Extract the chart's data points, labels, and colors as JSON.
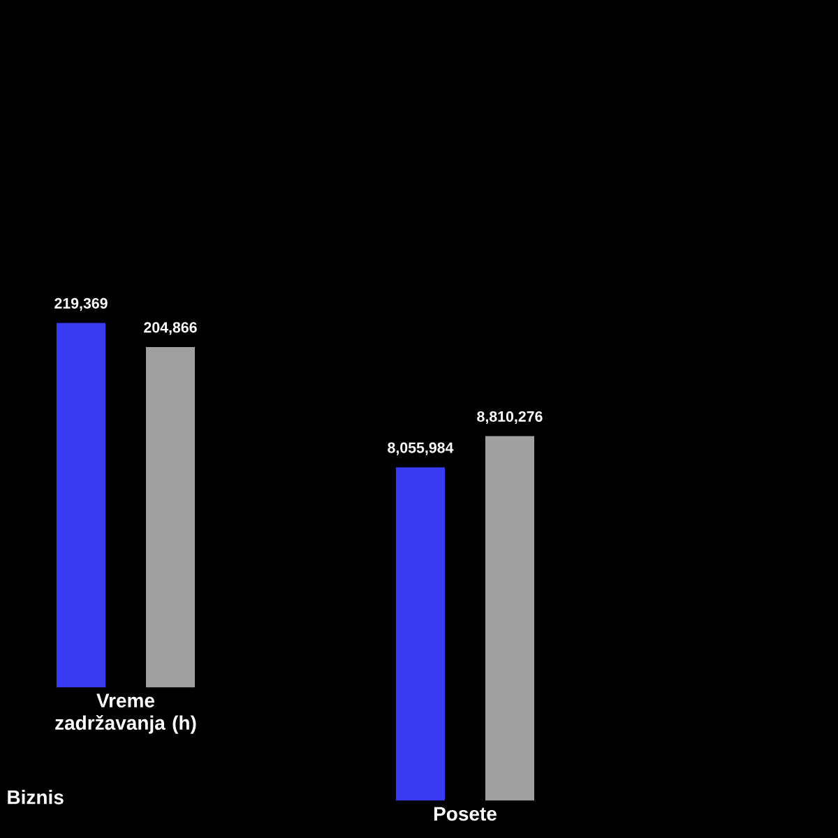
{
  "chart_data": [
    {
      "type": "bar",
      "categories": [
        "Vreme zadržavanja (h)"
      ],
      "tick_labels": "x",
      "annotations": [
        "Biznis"
      ],
      "series": [
        {
          "color": "#3a3af2",
          "values": [
            219369
          ],
          "value_labels": [
            "219,369"
          ]
        },
        {
          "color": "#a0a0a0",
          "values": [
            204866
          ],
          "value_labels": [
            "204,866"
          ]
        }
      ]
    },
    {
      "type": "bar",
      "categories": [
        "Posete"
      ],
      "tick_labels": "x",
      "series": [
        {
          "color": "#3a3af2",
          "values": [
            8055984
          ],
          "value_labels": [
            "8,055,984"
          ]
        },
        {
          "color": "#a0a0a0",
          "values": [
            8810276
          ],
          "value_labels": [
            "8,810,276"
          ]
        }
      ]
    }
  ]
}
